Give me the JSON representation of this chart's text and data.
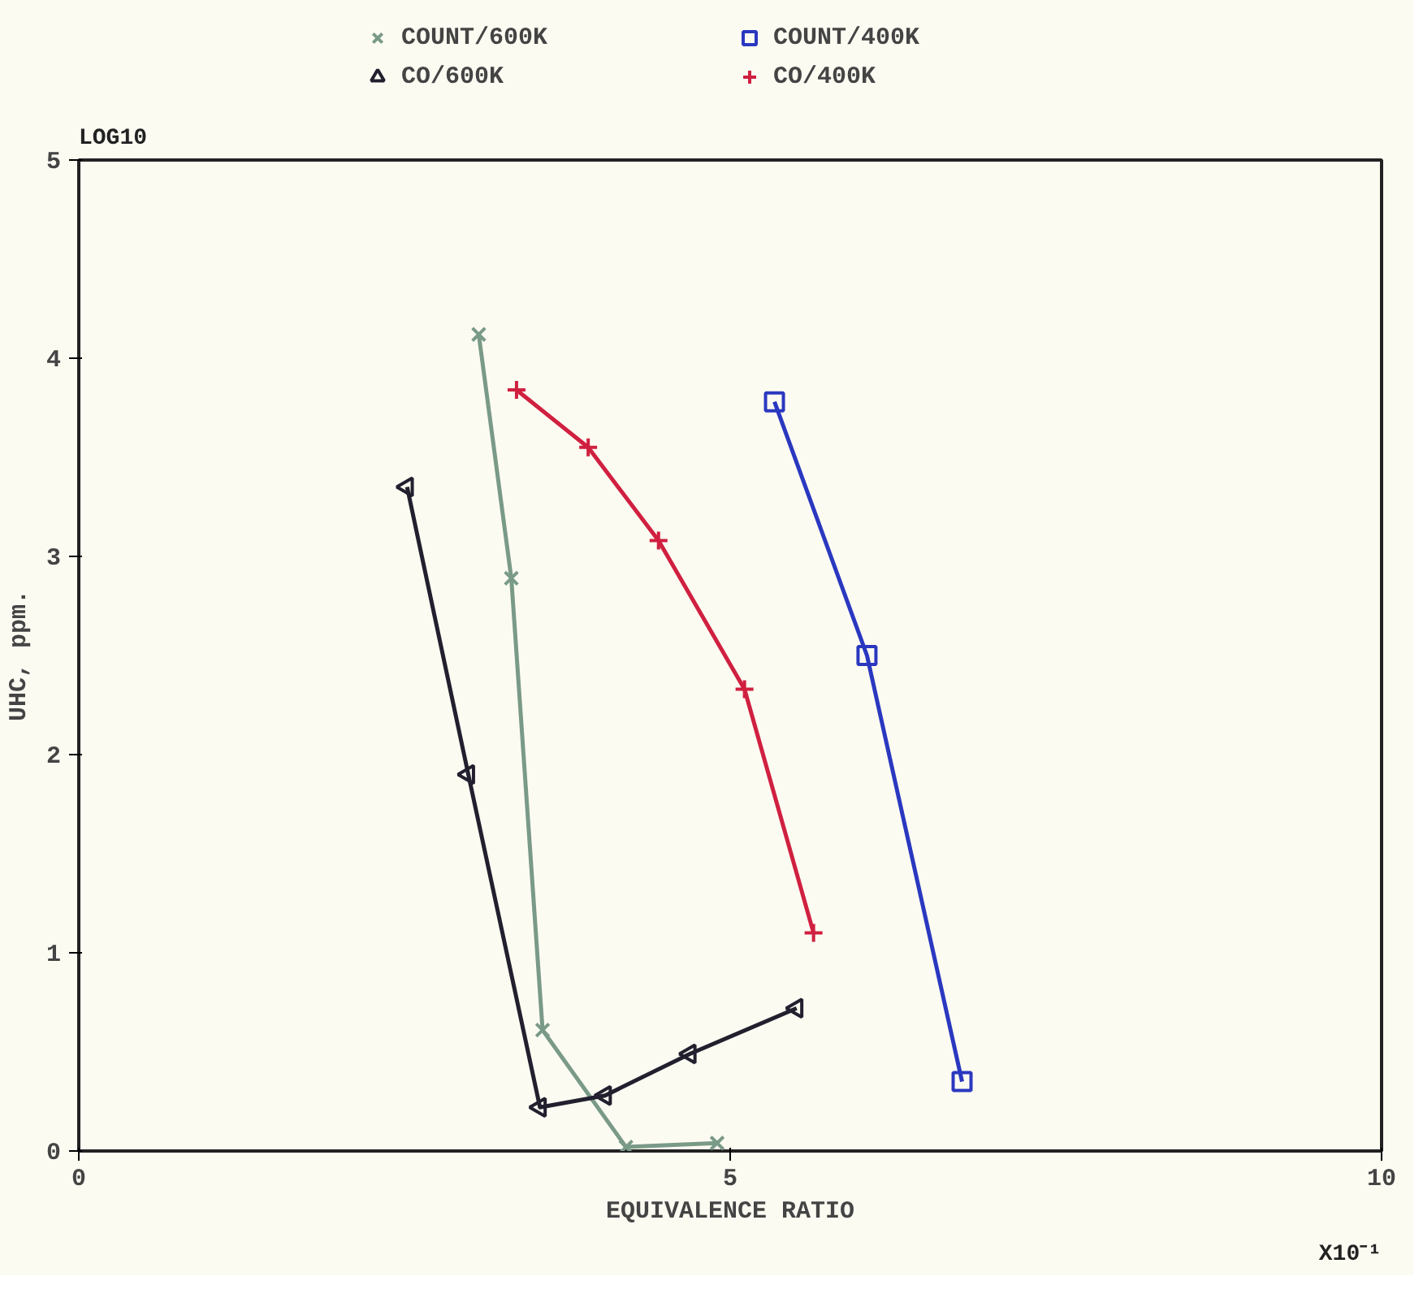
{
  "chart_data": {
    "type": "line",
    "xlabel": "EQUIVALENCE RATIO",
    "ylabel": "UHC, ppm.",
    "xlim": [
      0,
      10
    ],
    "ylim": [
      0,
      5
    ],
    "xticks": [
      0,
      5,
      10
    ],
    "yticks": [
      0,
      1,
      2,
      3,
      4,
      5
    ],
    "grid": false,
    "legend": "top",
    "line_style": "solid",
    "annotations": [
      "LOG10",
      "X10⁻¹"
    ],
    "series": [
      {
        "name": "COUNT/600K",
        "color": "#7a9a88",
        "marker": "x",
        "x": [
          3.07,
          3.32,
          3.56,
          4.2,
          4.9
        ],
        "values": [
          4.12,
          2.89,
          0.61,
          0.02,
          0.04
        ]
      },
      {
        "name": "COUNT/400K",
        "color": "#2a38c0",
        "marker": "square",
        "x": [
          5.34,
          6.05,
          6.78
        ],
        "values": [
          3.78,
          2.5,
          0.35
        ]
      },
      {
        "name": "CO/600K",
        "color": "#22202e",
        "marker": "triangle",
        "x": [
          2.52,
          2.99,
          3.54,
          4.04,
          4.69,
          5.51
        ],
        "values": [
          3.35,
          1.9,
          0.22,
          0.28,
          0.49,
          0.72
        ]
      },
      {
        "name": "CO/400K",
        "color": "#d02040",
        "marker": "cross",
        "x": [
          3.36,
          3.91,
          4.45,
          5.11,
          5.64
        ],
        "values": [
          3.84,
          3.55,
          3.08,
          2.33,
          1.1
        ]
      }
    ]
  }
}
